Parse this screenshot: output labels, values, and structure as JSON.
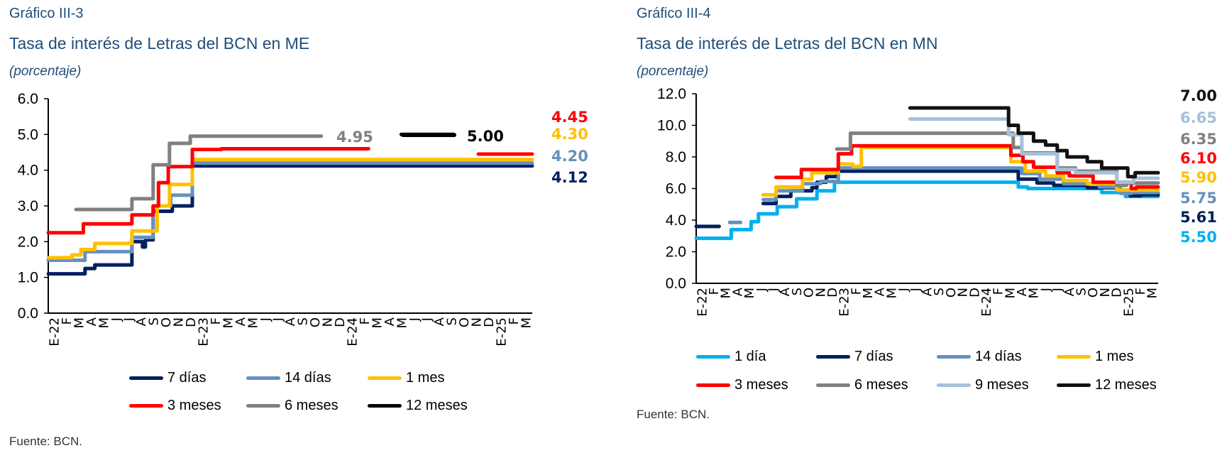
{
  "charts": [
    {
      "number": "Gráfico III-3",
      "title": "Tasa de interés de Letras del BCN en ME",
      "unit": "(porcentaje)",
      "source": "Fuente: BCN.",
      "chart_data": {
        "type": "line",
        "step": true,
        "x_range": [
          "2022-01-01",
          "2025-04-01"
        ],
        "ylim": [
          0,
          6
        ],
        "yticks": [
          "0.0",
          "1.0",
          "2.0",
          "3.0",
          "4.0",
          "5.0",
          "6.0"
        ],
        "xtick_labels": [
          "E-22",
          "F",
          "M",
          "A",
          "M",
          "J",
          "J",
          "A",
          "S",
          "O",
          "N",
          "D",
          "E-23",
          "F",
          "M",
          "A",
          "M",
          "J",
          "J",
          "A",
          "S",
          "O",
          "N",
          "D",
          "E-24",
          "F",
          "M",
          "A",
          "M",
          "J",
          "J",
          "A",
          "S",
          "O",
          "N",
          "D",
          "E-25",
          "F",
          "M"
        ],
        "grid": false,
        "legend_placement": "bottom",
        "series": [
          {
            "name": "7 días",
            "color": "#002060",
            "end_label": "4.12",
            "steps": [
              [
                "2022-01-01",
                1.1
              ],
              [
                "2022-04-01",
                1.25
              ],
              [
                "2022-04-25",
                1.35
              ],
              [
                "2022-07-25",
                2.0
              ],
              [
                "2022-08-20",
                1.85
              ],
              [
                "2022-08-27",
                2.05
              ],
              [
                "2022-09-15",
                2.85
              ],
              [
                "2022-11-01",
                3.0
              ],
              [
                "2022-12-20",
                4.12
              ],
              [
                "2025-04-01",
                null
              ]
            ]
          },
          {
            "name": "14 días",
            "color": "#6591BC",
            "end_label": "4.20",
            "steps": [
              [
                "2022-01-01",
                1.48
              ],
              [
                "2022-04-01",
                1.72
              ],
              [
                "2022-07-25",
                2.12
              ],
              [
                "2022-09-15",
                3.0
              ],
              [
                "2022-10-28",
                3.3
              ],
              [
                "2022-12-20",
                4.2
              ],
              [
                "2025-04-01",
                null
              ]
            ]
          },
          {
            "name": "1 mes",
            "color": "#FFC000",
            "end_label": "4.30",
            "steps": [
              [
                "2022-01-01",
                1.55
              ],
              [
                "2022-02-28",
                1.63
              ],
              [
                "2022-03-22",
                1.78
              ],
              [
                "2022-04-25",
                1.95
              ],
              [
                "2022-07-25",
                2.3
              ],
              [
                "2022-09-25",
                3.0
              ],
              [
                "2022-10-25",
                3.6
              ],
              [
                "2022-12-20",
                4.3
              ],
              [
                "2025-04-01",
                null
              ]
            ]
          },
          {
            "name": "3 meses",
            "color": "#FF0000",
            "end_label": "4.45",
            "steps": [
              [
                "2022-01-01",
                2.25
              ],
              [
                "2022-03-28",
                2.5
              ],
              [
                "2022-07-25",
                2.75
              ],
              [
                "2022-09-15",
                3.0
              ],
              [
                "2022-09-28",
                3.65
              ],
              [
                "2022-10-22",
                4.1
              ],
              [
                "2022-12-20",
                4.58
              ],
              [
                "2023-03-01",
                4.6
              ],
              [
                "2024-02-25",
                null
              ],
              [
                "2024-11-20",
                4.45
              ],
              [
                "2025-04-01",
                null
              ]
            ]
          },
          {
            "name": "6 meses",
            "color": "#808080",
            "end_label": "4.95",
            "steps": [
              [
                "2022-03-10",
                2.9
              ],
              [
                "2022-07-25",
                3.2
              ],
              [
                "2022-09-15",
                4.15
              ],
              [
                "2022-10-25",
                4.75
              ],
              [
                "2022-12-15",
                4.95
              ],
              [
                "2023-11-01",
                null
              ]
            ]
          },
          {
            "name": "12 meses",
            "color": "#000000",
            "end_label": "5.00",
            "steps": [
              [
                "2024-05-15",
                5.0
              ],
              [
                "2024-09-20",
                null
              ]
            ]
          }
        ]
      }
    },
    {
      "number": "Gráfico III-4",
      "title": "Tasa de interés de Letras del BCN en MN",
      "unit": "(porcentaje)",
      "source": "Fuente: BCN.",
      "chart_data": {
        "type": "line",
        "step": true,
        "x_range": [
          "2022-01-01",
          "2025-04-01"
        ],
        "ylim": [
          0,
          12
        ],
        "yticks": [
          "0.0",
          "2.0",
          "4.0",
          "6.0",
          "8.0",
          "10.0",
          "12.0"
        ],
        "xtick_labels": [
          "E-22",
          "F",
          "M",
          "A",
          "M",
          "J",
          "J",
          "A",
          "S",
          "O",
          "N",
          "D",
          "E-23",
          "F",
          "M",
          "A",
          "M",
          "J",
          "J",
          "A",
          "S",
          "O",
          "N",
          "D",
          "E-24",
          "F",
          "M",
          "A",
          "M",
          "J",
          "J",
          "A",
          "S",
          "O",
          "N",
          "D",
          "E-25",
          "F",
          "M"
        ],
        "grid": false,
        "legend_placement": "bottom",
        "series": [
          {
            "name": "1 día",
            "color": "#00B0F0",
            "end_label": "5.50",
            "steps": [
              [
                "2022-01-01",
                2.85
              ],
              [
                "2022-04-01",
                3.4
              ],
              [
                "2022-05-22",
                3.9
              ],
              [
                "2022-06-10",
                4.4
              ],
              [
                "2022-07-28",
                4.85
              ],
              [
                "2022-09-16",
                5.35
              ],
              [
                "2022-11-07",
                5.85
              ],
              [
                "2022-12-22",
                6.4
              ],
              [
                "2024-04-07",
                6.1
              ],
              [
                "2024-05-01",
                6.0
              ],
              [
                "2024-11-07",
                5.75
              ],
              [
                "2025-01-07",
                5.5
              ],
              [
                "2025-04-01",
                null
              ]
            ]
          },
          {
            "name": "7 días",
            "color": "#002060",
            "end_label": "5.61",
            "steps": [
              [
                "2022-01-01",
                3.6
              ],
              [
                "2022-03-01",
                null
              ],
              [
                "2022-06-22",
                5.05
              ],
              [
                "2022-07-25",
                5.5
              ],
              [
                "2022-09-01",
                5.85
              ],
              [
                "2022-10-25",
                6.05
              ],
              [
                "2022-11-07",
                6.4
              ],
              [
                "2022-12-01",
                6.75
              ],
              [
                "2022-12-28",
                7.1
              ],
              [
                "2024-04-07",
                6.6
              ],
              [
                "2024-05-25",
                6.35
              ],
              [
                "2024-07-07",
                6.2
              ],
              [
                "2024-10-01",
                6.05
              ],
              [
                "2024-12-16",
                5.9
              ],
              [
                "2025-01-19",
                5.55
              ],
              [
                "2025-02-16",
                5.61
              ],
              [
                "2025-04-01",
                null
              ]
            ]
          },
          {
            "name": "14 días",
            "color": "#6591BC",
            "end_label": "5.75",
            "steps": [
              [
                "2022-03-28",
                3.85
              ],
              [
                "2022-04-25",
                null
              ],
              [
                "2022-06-22",
                5.3
              ],
              [
                "2022-07-25",
                5.85
              ],
              [
                "2022-10-01",
                6.3
              ],
              [
                "2022-11-16",
                6.45
              ],
              [
                "2023-01-01",
                7.3
              ],
              [
                "2024-04-16",
                6.95
              ],
              [
                "2024-06-01",
                6.6
              ],
              [
                "2024-08-01",
                6.3
              ],
              [
                "2024-11-01",
                6.1
              ],
              [
                "2024-12-25",
                5.7
              ],
              [
                "2025-01-22",
                5.75
              ],
              [
                "2025-04-01",
                null
              ]
            ]
          },
          {
            "name": "1 mes",
            "color": "#FFC000",
            "end_label": "5.90",
            "steps": [
              [
                "2022-06-22",
                5.6
              ],
              [
                "2022-07-25",
                6.1
              ],
              [
                "2022-10-01",
                6.6
              ],
              [
                "2022-10-25",
                7.0
              ],
              [
                "2023-01-01",
                7.55
              ],
              [
                "2023-02-07",
                7.4
              ],
              [
                "2023-03-01",
                8.6
              ],
              [
                "2024-03-19",
                7.7
              ],
              [
                "2024-04-25",
                7.1
              ],
              [
                "2024-06-16",
                6.8
              ],
              [
                "2024-08-01",
                6.5
              ],
              [
                "2024-10-01",
                6.3
              ],
              [
                "2024-12-16",
                5.9
              ],
              [
                "2025-04-01",
                null
              ]
            ]
          },
          {
            "name": "3 meses",
            "color": "#FF0000",
            "end_label": "6.10",
            "steps": [
              [
                "2022-07-25",
                6.7
              ],
              [
                "2022-09-28",
                7.2
              ],
              [
                "2023-01-01",
                8.2
              ],
              [
                "2023-02-04",
                8.7
              ],
              [
                "2024-03-19",
                8.1
              ],
              [
                "2024-04-19",
                7.7
              ],
              [
                "2024-05-16",
                7.35
              ],
              [
                "2024-07-16",
                7.0
              ],
              [
                "2024-08-16",
                6.8
              ],
              [
                "2024-10-16",
                6.4
              ],
              [
                "2025-01-22",
                6.0
              ],
              [
                "2025-02-04",
                6.1
              ],
              [
                "2025-04-01",
                null
              ]
            ]
          },
          {
            "name": "6 meses",
            "color": "#808080",
            "end_label": "6.35",
            "steps": [
              [
                "2022-12-28",
                8.5
              ],
              [
                "2023-02-01",
                9.5
              ],
              [
                "2024-03-25",
                8.6
              ],
              [
                "2024-04-16",
                8.25
              ],
              [
                "2024-07-16",
                7.3
              ],
              [
                "2024-09-01",
                7.1
              ],
              [
                "2024-12-16",
                6.2
              ],
              [
                "2025-01-10",
                6.35
              ],
              [
                "2025-04-01",
                null
              ]
            ]
          },
          {
            "name": "9 meses",
            "color": "#A6C0D9",
            "end_label": "6.65",
            "steps": [
              [
                "2023-07-04",
                10.4
              ],
              [
                "2024-03-13",
                9.4
              ],
              [
                "2024-04-16",
                8.2
              ],
              [
                "2024-07-16",
                7.2
              ],
              [
                "2024-09-01",
                7.0
              ],
              [
                "2024-12-16",
                6.4
              ],
              [
                "2025-01-28",
                6.65
              ],
              [
                "2025-04-01",
                null
              ]
            ]
          },
          {
            "name": "12 meses",
            "color": "#111111",
            "end_label": "7.00",
            "steps": [
              [
                "2023-07-04",
                11.1
              ],
              [
                "2024-03-13",
                10.0
              ],
              [
                "2024-04-07",
                9.5
              ],
              [
                "2024-05-16",
                9.0
              ],
              [
                "2024-06-16",
                8.75
              ],
              [
                "2024-07-16",
                8.4
              ],
              [
                "2024-08-10",
                8.0
              ],
              [
                "2024-10-01",
                7.7
              ],
              [
                "2024-11-07",
                7.3
              ],
              [
                "2025-01-13",
                6.75
              ],
              [
                "2025-02-01",
                7.0
              ],
              [
                "2025-04-01",
                null
              ]
            ]
          }
        ]
      }
    }
  ]
}
